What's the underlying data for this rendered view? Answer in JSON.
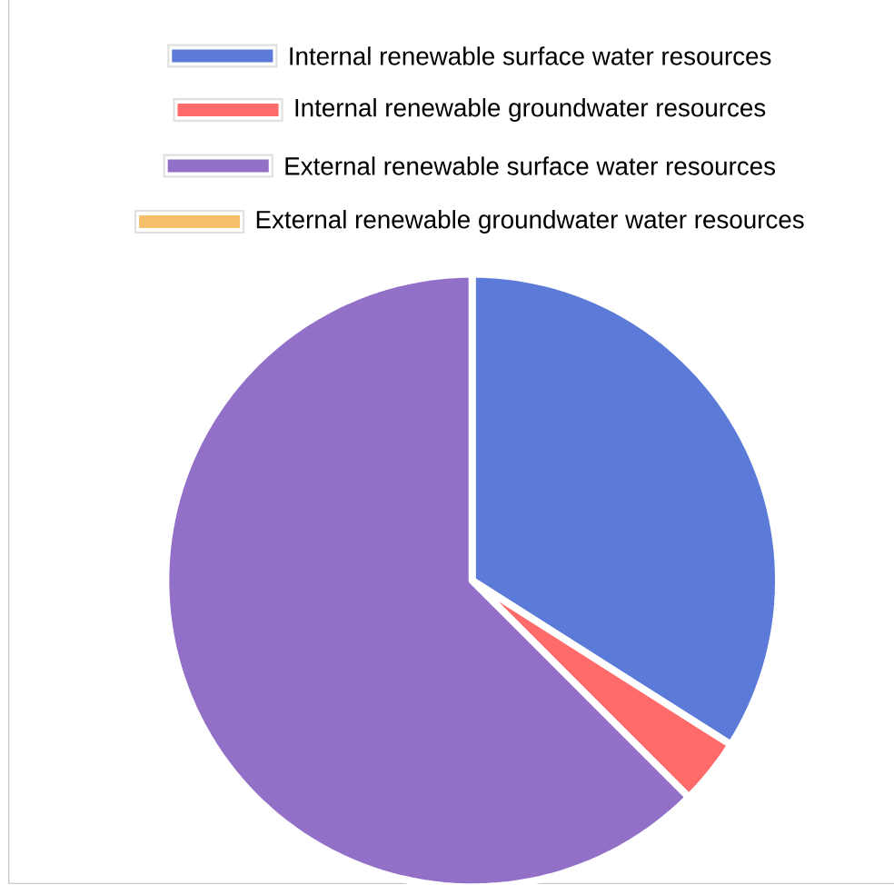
{
  "chart_data": {
    "type": "pie",
    "categories": [
      "Internal renewable surface water resources",
      "Internal renewable groundwater resources",
      "External renewable surface water resources",
      "External renewable groundwater water resources"
    ],
    "values": [
      34,
      3.5,
      62.5,
      0
    ],
    "colors": [
      "#5c7bd9",
      "#ff6b6b",
      "#9370c8",
      "#f5c06b"
    ],
    "legend": "top"
  }
}
